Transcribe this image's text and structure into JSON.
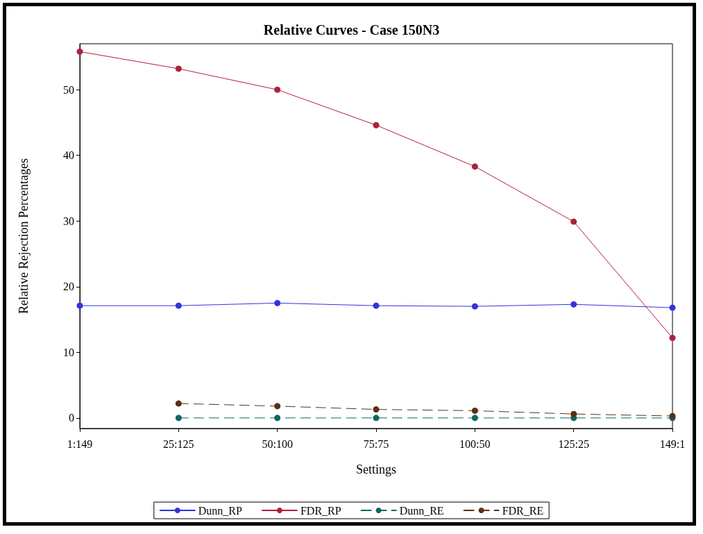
{
  "chart_data": {
    "type": "line",
    "title": "Relative Curves - Case 150N3",
    "xlabel": "Settings",
    "ylabel": "Relative Rejection Percentages",
    "categories": [
      "1:149",
      "25:125",
      "50:100",
      "75:75",
      "100:50",
      "125:25",
      "149:1"
    ],
    "series": [
      {
        "name": "Dunn_RP",
        "color": "#3333dd",
        "values": [
          17.1,
          17.1,
          17.5,
          17.1,
          17.0,
          17.3,
          16.8
        ],
        "line_style": "solid"
      },
      {
        "name": "FDR_RP",
        "color": "#b0203a",
        "values": [
          55.8,
          53.2,
          50.0,
          44.6,
          38.3,
          29.9,
          12.2
        ],
        "line_style": "solid"
      },
      {
        "name": "Dunn_RE",
        "color": "#106660",
        "values": [
          null,
          0,
          0,
          0,
          0,
          0,
          0
        ],
        "line_style": "dashed"
      },
      {
        "name": "FDR_RE",
        "color": "#5a3010",
        "values": [
          null,
          2.2,
          1.8,
          1.3,
          1.1,
          0.6,
          0.3
        ],
        "line_style": "dashed"
      }
    ],
    "ylim": [
      -1.6,
      57
    ],
    "yticks": [
      0,
      10,
      20,
      30,
      40,
      50
    ],
    "grid": false,
    "legend": "bottom",
    "marker": "circle"
  }
}
